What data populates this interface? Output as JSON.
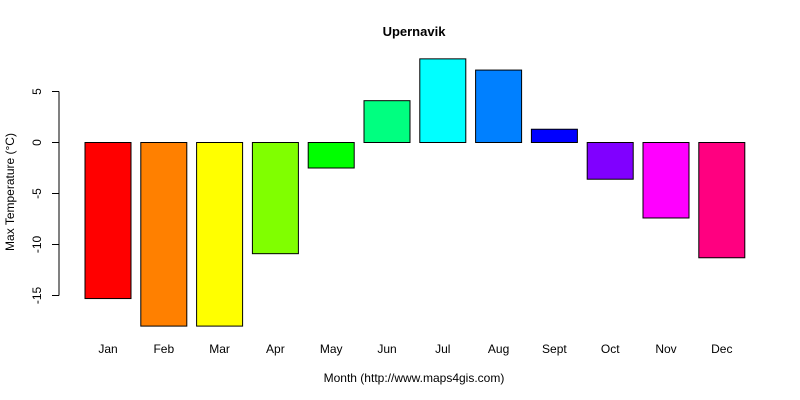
{
  "chart_data": {
    "type": "bar",
    "title": "Upernavik",
    "xlabel": "Month (http://www.maps4gis.com)",
    "ylabel": "Max Temperature (°C)",
    "categories": [
      "Jan",
      "Feb",
      "Mar",
      "Apr",
      "May",
      "Jun",
      "Jul",
      "Aug",
      "Sept",
      "Oct",
      "Nov",
      "Dec"
    ],
    "values": [
      -15.3,
      -18.0,
      -18.0,
      -10.9,
      -2.5,
      4.1,
      8.2,
      7.1,
      1.3,
      -3.6,
      -7.4,
      -11.3
    ],
    "colors": [
      "#FF0000",
      "#FF8000",
      "#FFFF00",
      "#80FF00",
      "#00FF00",
      "#00FF80",
      "#00FFFF",
      "#0080FF",
      "#0000FF",
      "#8000FF",
      "#FF00FF",
      "#FF0080"
    ],
    "yticks": [
      -15,
      -10,
      -5,
      0,
      5
    ],
    "ylim": [
      -18.5,
      9.0
    ],
    "grid": false,
    "legend": "none"
  }
}
